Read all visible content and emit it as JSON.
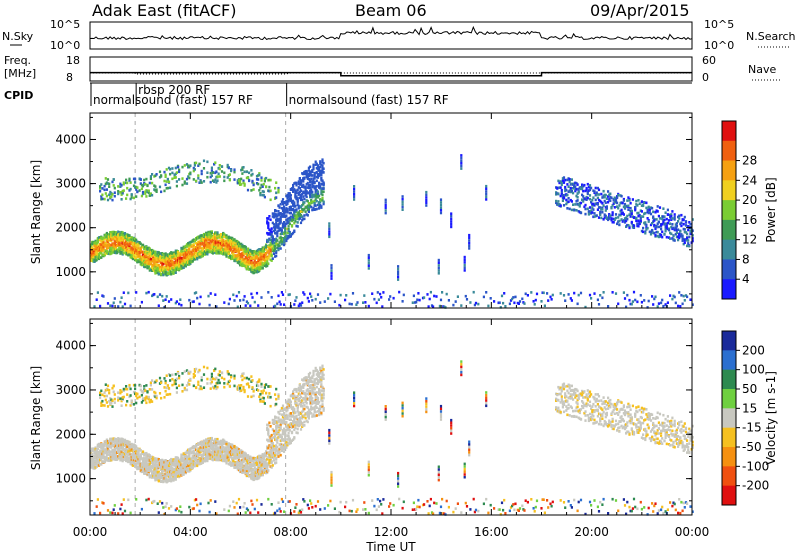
{
  "header": {
    "station": "Adak East (fitACF)",
    "beam": "Beam 06",
    "date": "09/Apr/2015"
  },
  "noise_panel": {
    "left_label": "N.Sky",
    "right_label": "N.Search",
    "ticks_left": [
      "10^5",
      "10^0"
    ],
    "ticks_right": [
      "10^5",
      "10^0"
    ]
  },
  "freq_panel": {
    "left_label_1": "Freq.",
    "left_label_2": "[MHz]",
    "ticks_left": [
      "18",
      "8"
    ],
    "right_label": "Nave",
    "ticks_right": [
      "60",
      "0"
    ],
    "freq_segments": [
      {
        "x0": 0.0,
        "x1": 10.0,
        "value": 11.5
      },
      {
        "x0": 10.0,
        "x1": 18.0,
        "value": 10.2
      },
      {
        "x0": 18.0,
        "x1": 24.0,
        "value": 11.5
      }
    ]
  },
  "cpid": {
    "label": "CPID",
    "segments": [
      {
        "start": 0.0,
        "label": "normalsound (fast) 157 RF"
      },
      {
        "start": 1.8,
        "label": "rbsp 200 RF"
      },
      {
        "start": 7.8,
        "label": "normalsound (fast) 157 RF"
      }
    ]
  },
  "chart_data": [
    {
      "type": "heatmap",
      "name": "power",
      "ylabel": "Slant Range [km]",
      "yticks": [
        1000,
        2000,
        3000,
        4000
      ],
      "ylim": [
        180,
        4600
      ],
      "xlim": [
        0,
        24
      ],
      "colorbar_label": "Power [dB]",
      "colorbar_ticks": [
        4,
        8,
        12,
        16,
        20,
        24,
        28
      ],
      "colorbar_colors": [
        "#1a1aff",
        "#2b55c8",
        "#3a8a9a",
        "#3f9b55",
        "#7acc33",
        "#f0d020",
        "#f5a011",
        "#f06010",
        "#e01010"
      ]
    },
    {
      "type": "heatmap",
      "name": "velocity",
      "ylabel": "Slant Range [km]",
      "yticks": [
        1000,
        2000,
        3000,
        4000
      ],
      "ylim": [
        180,
        4600
      ],
      "xlim": [
        0,
        24
      ],
      "colorbar_label": "Velocity [m s-1]",
      "colorbar_ticks": [
        "200",
        "100",
        "50",
        "15",
        "-15",
        "-50",
        "-100",
        "-200"
      ],
      "colorbar_colors": [
        "#1a2a9a",
        "#2b6fd0",
        "#2e8a50",
        "#6fd040",
        "#c8c8c0",
        "#f5c020",
        "#f59010",
        "#f05010",
        "#e01010"
      ]
    }
  ],
  "xaxis": {
    "label": "Time UT",
    "ticks": [
      "00:00",
      "04:00",
      "08:00",
      "12:00",
      "16:00",
      "20:00",
      "00:00"
    ]
  }
}
